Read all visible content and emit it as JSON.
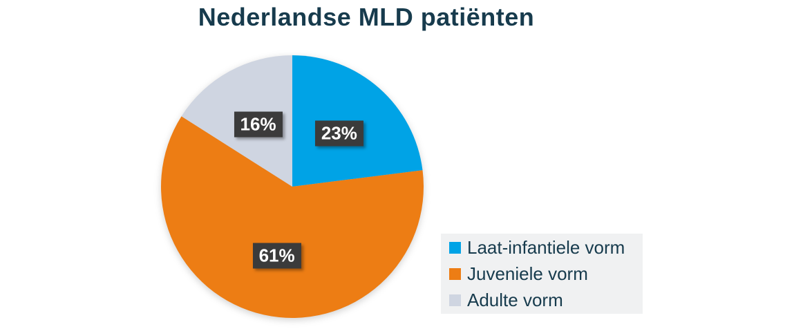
{
  "chart_data": {
    "type": "pie",
    "title": "Nederlandse MLD patiënten",
    "start_angle_deg": -90,
    "direction": "clockwise",
    "legend_position": "bottom-right",
    "slices": [
      {
        "label": "Laat-infantiele vorm",
        "value": 23,
        "percent_label": "23%",
        "color": "#00A3E6"
      },
      {
        "label": "Juveniele vorm",
        "value": 61,
        "percent_label": "61%",
        "color": "#ED7D14"
      },
      {
        "label": "Adulte vorm",
        "value": 16,
        "percent_label": "16%",
        "color": "#CFD5E1"
      }
    ],
    "data_label_style": {
      "background": "#3B3B3B",
      "text_color": "#FFFFFF"
    }
  },
  "style": {
    "title_color": "#173B4D",
    "legend_background": "#F0F1F2",
    "legend_text_color": "#173B4D"
  }
}
